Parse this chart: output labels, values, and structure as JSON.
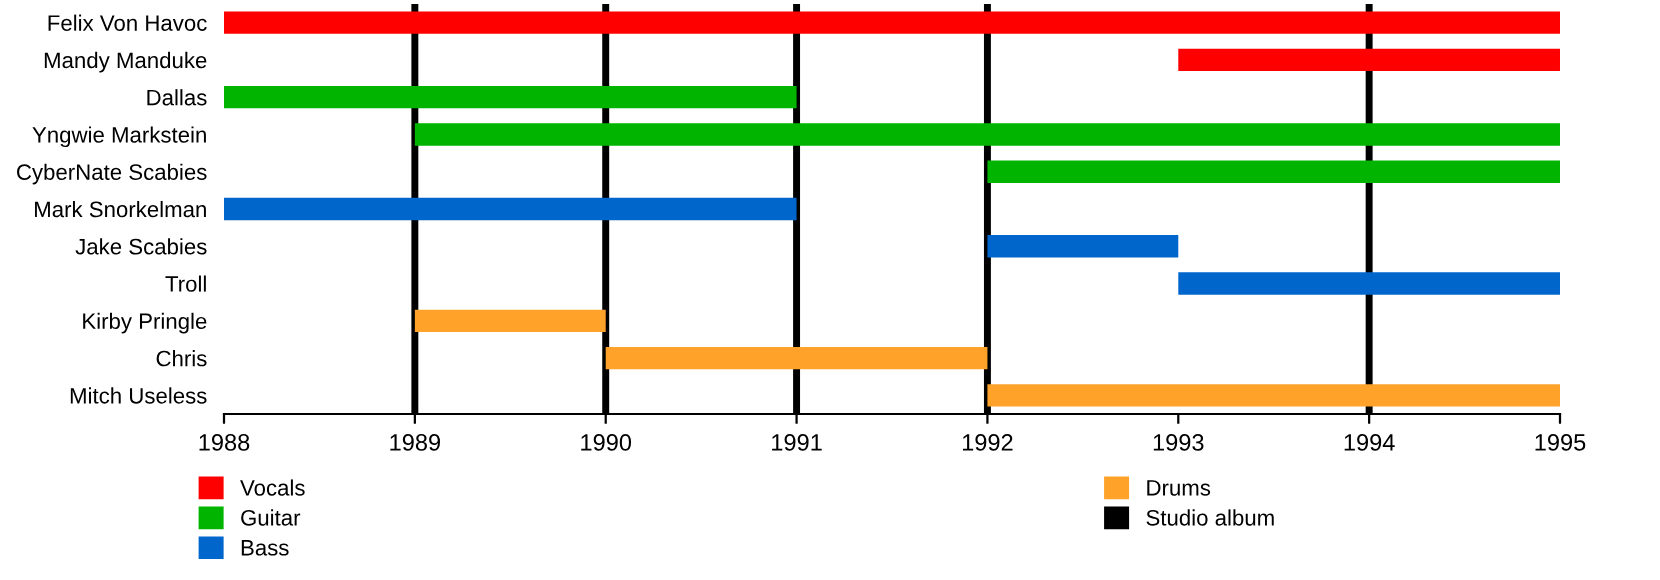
{
  "chart_data": {
    "type": "bar",
    "orientation": "horizontal",
    "categories": [
      "Felix Von Havoc",
      "Mandy Manduke",
      "Dallas",
      "Yngwie Markstein",
      "CyberNate Scabies",
      "Mark Snorkelman",
      "Jake Scabies",
      "Troll",
      "Kirby Pringle",
      "Chris",
      "Mitch Useless"
    ],
    "series": [
      {
        "name": "Vocals",
        "color": "#ff0000",
        "base": [
          1988,
          1993,
          null,
          null,
          null,
          null,
          null,
          null,
          null,
          null,
          null
        ],
        "values": [
          7,
          2,
          null,
          null,
          null,
          null,
          null,
          null,
          null,
          null,
          null
        ]
      },
      {
        "name": "Guitar",
        "color": "#00b400",
        "base": [
          null,
          null,
          1988,
          1989,
          1992,
          null,
          null,
          null,
          null,
          null,
          null
        ],
        "values": [
          null,
          null,
          3,
          6,
          3,
          null,
          null,
          null,
          null,
          null,
          null
        ]
      },
      {
        "name": "Bass",
        "color": "#0066cc",
        "base": [
          null,
          null,
          null,
          null,
          null,
          1988,
          1992,
          1993,
          null,
          null,
          null
        ],
        "values": [
          null,
          null,
          null,
          null,
          null,
          3,
          1,
          2,
          null,
          null,
          null
        ]
      },
      {
        "name": "Drums",
        "color": "#ffa229",
        "base": [
          null,
          null,
          null,
          null,
          null,
          null,
          null,
          null,
          1989,
          1990,
          1992
        ],
        "values": [
          null,
          null,
          null,
          null,
          null,
          null,
          null,
          null,
          1,
          2,
          3
        ]
      }
    ],
    "ref_lines": [
      {
        "axis": "x",
        "value": 1989,
        "label": "Studio album",
        "color": "#000000"
      },
      {
        "axis": "x",
        "value": 1990,
        "color": "#000000"
      },
      {
        "axis": "x",
        "value": 1991,
        "color": "#000000"
      },
      {
        "axis": "x",
        "value": 1992,
        "color": "#000000"
      },
      {
        "axis": "x",
        "value": 1994,
        "color": "#000000"
      }
    ],
    "xlim": [
      1988,
      1995
    ],
    "xticks": [
      1988,
      1989,
      1990,
      1991,
      1992,
      1993,
      1994,
      1995
    ],
    "grid": false,
    "legend": "bottom"
  }
}
